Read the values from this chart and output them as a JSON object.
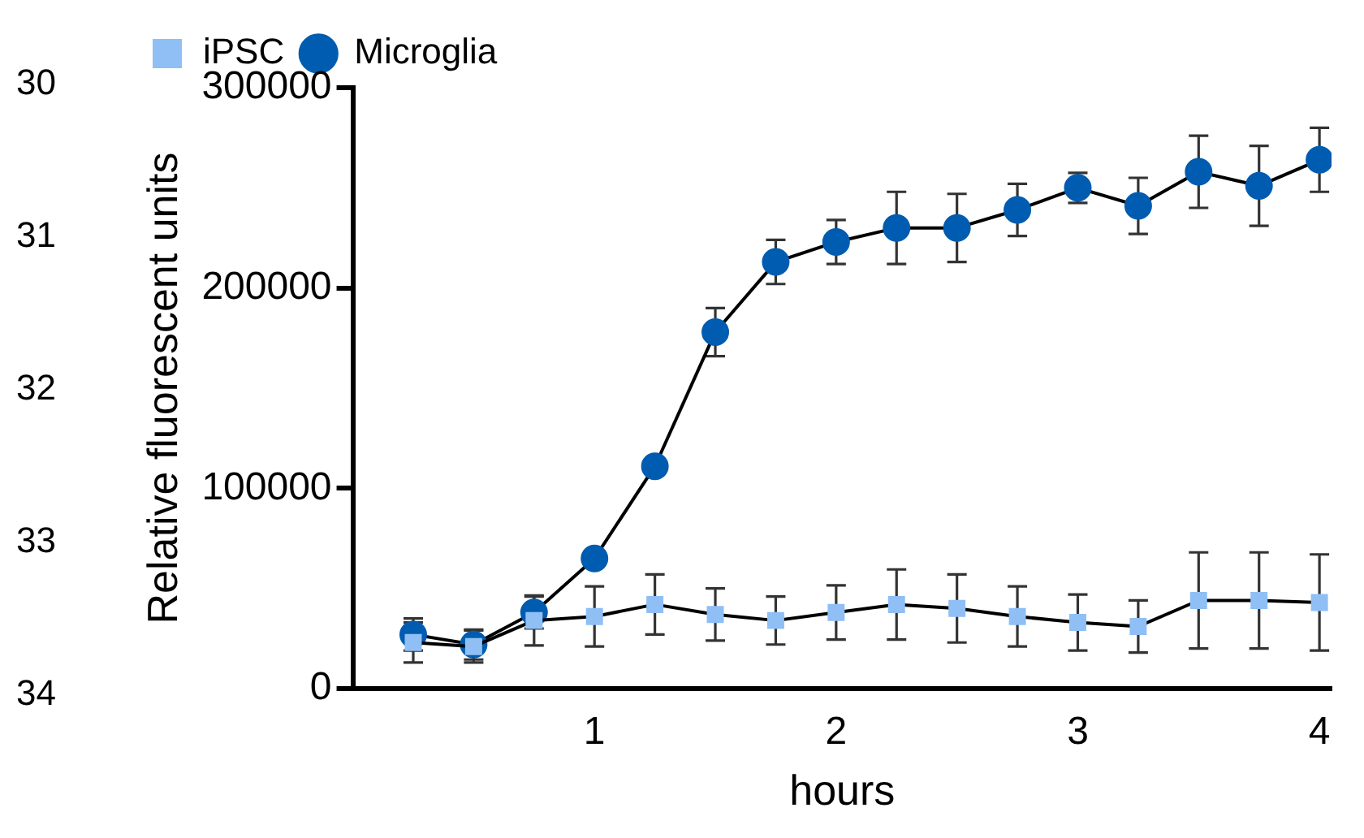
{
  "chart_data": {
    "type": "line",
    "xlabel": "hours",
    "ylabel": "Relative fluorescent units",
    "x": [
      0.25,
      0.5,
      0.75,
      1,
      1.25,
      1.5,
      1.75,
      2,
      2.25,
      2.5,
      2.75,
      3,
      3.25,
      3.5,
      3.75,
      4
    ],
    "series": [
      {
        "name": "iPSC",
        "color": "#8fbff5",
        "marker": "square",
        "values": [
          23000,
          21000,
          34000,
          36000,
          42000,
          37000,
          34000,
          38000,
          42000,
          40000,
          36000,
          33000,
          31000,
          44000,
          44000,
          43000
        ],
        "errors": [
          10000,
          8000,
          12500,
          15000,
          15000,
          13000,
          12000,
          13500,
          17500,
          17000,
          15000,
          14000,
          13000,
          24000,
          24000,
          24000
        ]
      },
      {
        "name": "Microglia",
        "color": "#005cb0",
        "marker": "circle",
        "values": [
          27000,
          22000,
          38000,
          65000,
          111000,
          178000,
          213000,
          223000,
          230000,
          230000,
          239000,
          250000,
          241000,
          258000,
          251000,
          264000
        ],
        "errors": [
          8000,
          7500,
          8000,
          null,
          null,
          12000,
          11000,
          11000,
          18000,
          17000,
          13000,
          7500,
          14000,
          18000,
          20000,
          16000
        ]
      }
    ],
    "xlim": [
      0,
      4.05
    ],
    "xticks": [
      1,
      2,
      3,
      4
    ],
    "ylim": [
      0,
      300000
    ],
    "yticks": [
      0,
      100000,
      200000,
      300000
    ],
    "grid": false,
    "legend": "top left",
    "line_style": "solid",
    "annotations": [
      "30",
      "31",
      "32",
      "33",
      "34"
    ]
  }
}
